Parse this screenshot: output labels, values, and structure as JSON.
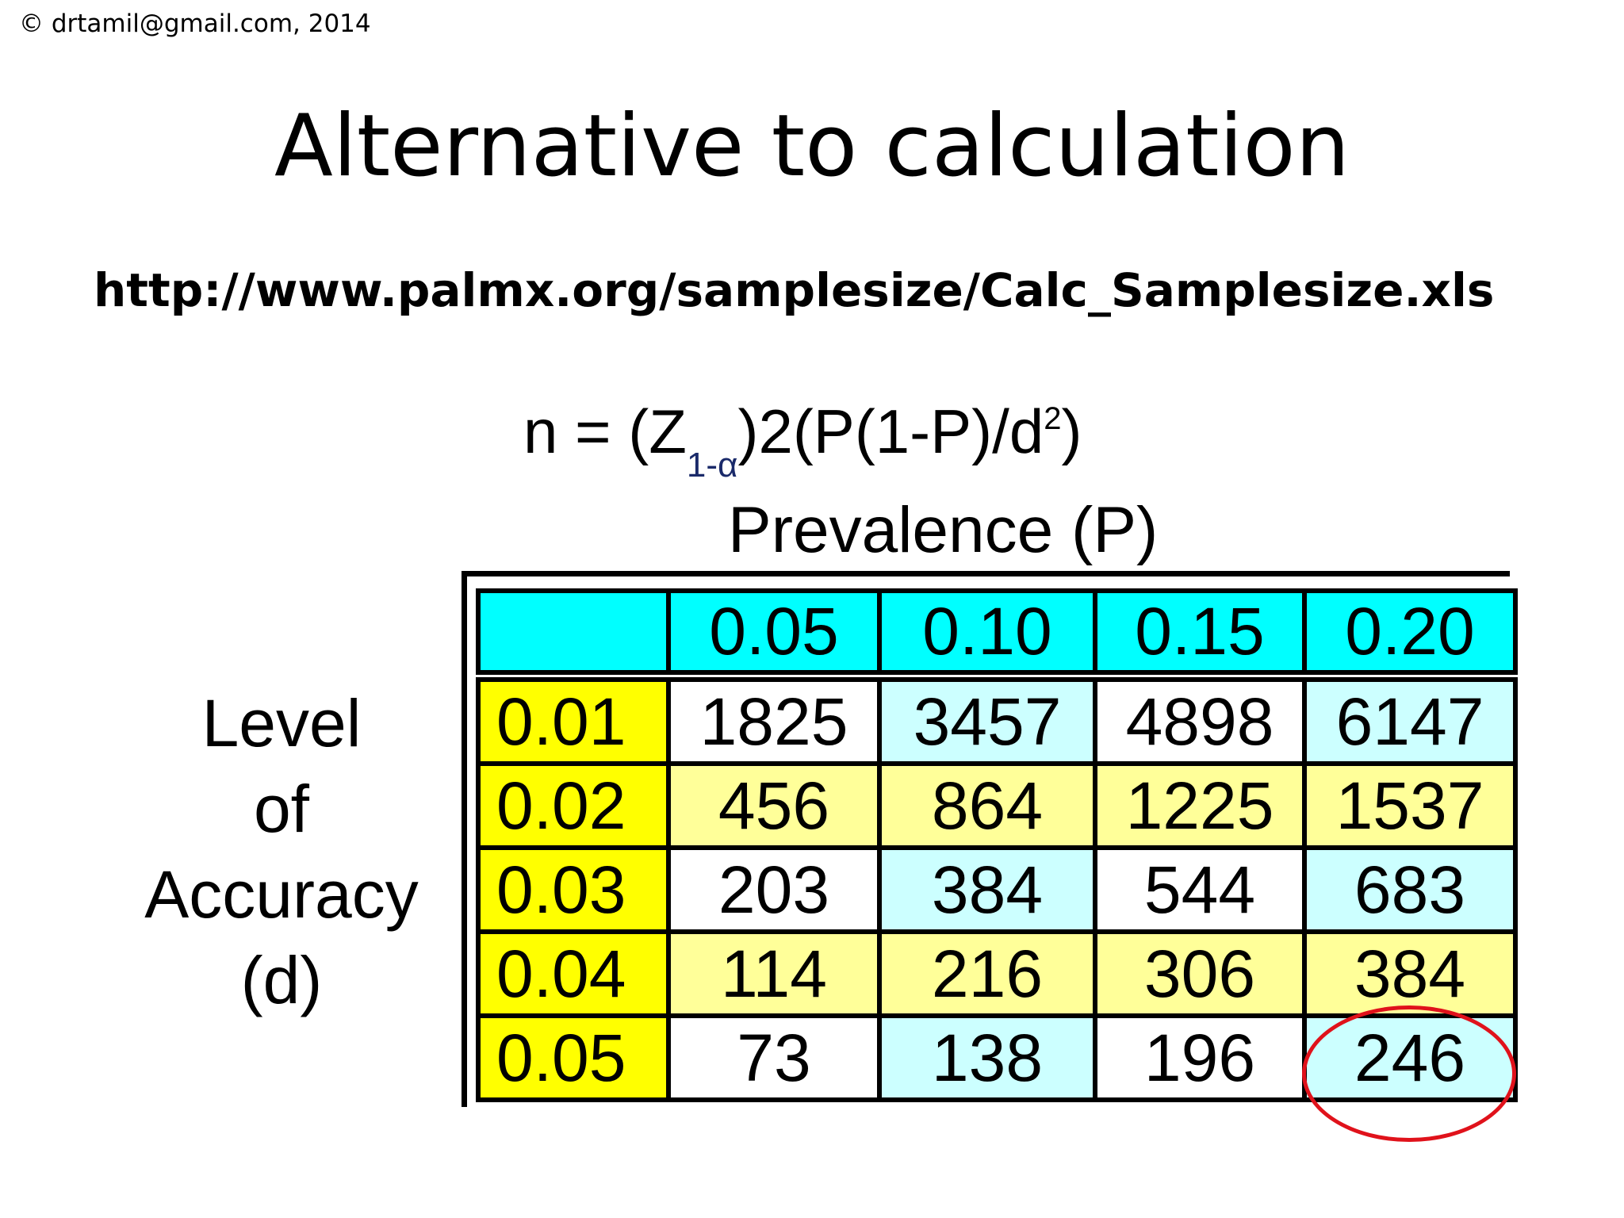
{
  "copyright": "© drtamil@gmail.com, 2014",
  "title": "Alternative to calculation",
  "url": "http://www.palmx.org/samplesize/Calc_Samplesize.xls",
  "formula": {
    "left": "n = (Z",
    "sub": "1-α",
    "middle": ")2(P(1-P)/d",
    "sup": "2",
    "end": ")"
  },
  "prevalence_label": "Prevalence (P)",
  "row_label": [
    "Level",
    "of",
    "Accuracy",
    "(d)"
  ],
  "table": {
    "columns": [
      "0.05",
      "0.10",
      "0.15",
      "0.20"
    ],
    "rows": [
      {
        "d": "0.01",
        "values": [
          "1825",
          "3457",
          "4898",
          "6147"
        ]
      },
      {
        "d": "0.02",
        "values": [
          "456",
          "864",
          "1225",
          "1537"
        ]
      },
      {
        "d": "0.03",
        "values": [
          "203",
          "384",
          "544",
          "683"
        ]
      },
      {
        "d": "0.04",
        "values": [
          "114",
          "216",
          "306",
          "384"
        ]
      },
      {
        "d": "0.05",
        "values": [
          "73",
          "138",
          "196",
          "246"
        ]
      }
    ]
  },
  "highlight_color": "#e0121b"
}
